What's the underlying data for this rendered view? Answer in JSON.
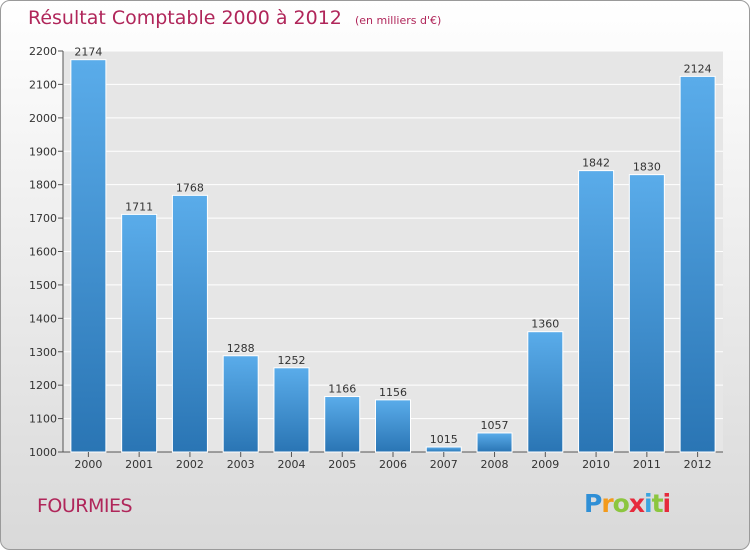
{
  "title": "Résultat Comptable 2000 à 2012",
  "unit_note": "(en milliers d'€)",
  "commune": "FOURMIES",
  "brand": {
    "letters": [
      "P",
      "r",
      "o",
      "x",
      "i",
      "t",
      "i"
    ],
    "colors": [
      "#2f8fd6",
      "#f39a1b",
      "#8cc63f",
      "#e62a3c",
      "#3ba5e0",
      "#8cc63f",
      "#e62a3c"
    ]
  },
  "colors": {
    "accent": "#b0265a",
    "bar_top": "#5aacea",
    "bar_bottom": "#2a75b4"
  },
  "chart_data": {
    "type": "bar",
    "categories": [
      "2000",
      "2001",
      "2002",
      "2003",
      "2004",
      "2005",
      "2006",
      "2007",
      "2008",
      "2009",
      "2010",
      "2011",
      "2012"
    ],
    "values": [
      2174,
      1711,
      1768,
      1288,
      1252,
      1166,
      1156,
      1015,
      1057,
      1360,
      1842,
      1830,
      2124
    ],
    "y_ticks": [
      1000,
      1100,
      1200,
      1300,
      1400,
      1500,
      1600,
      1700,
      1800,
      1900,
      2000,
      2100,
      2200
    ],
    "ylim": [
      1000,
      2200
    ],
    "grid": true,
    "xlabel": "",
    "ylabel": ""
  }
}
